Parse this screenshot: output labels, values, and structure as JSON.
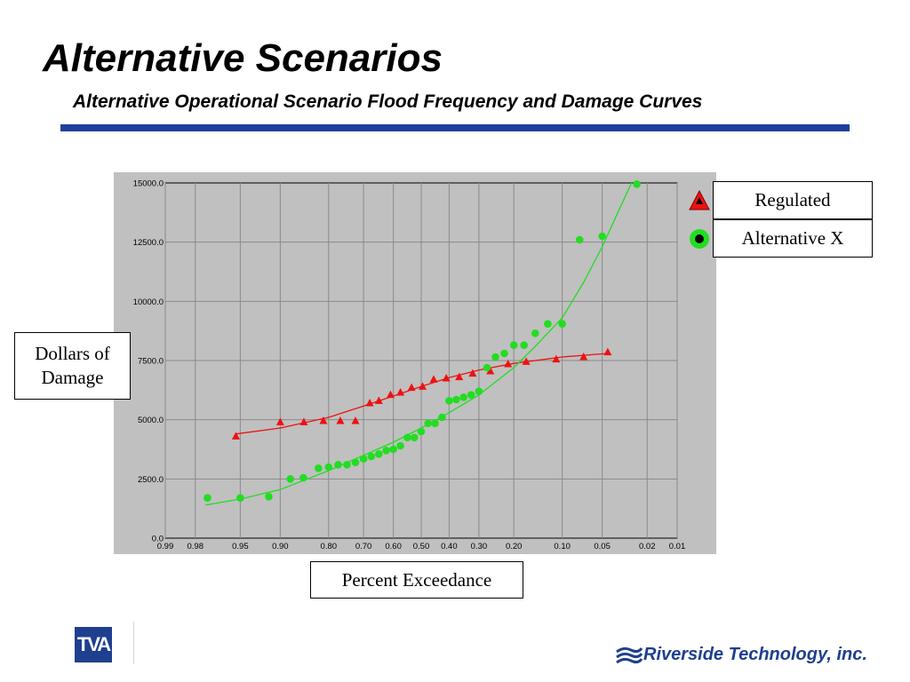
{
  "slide": {
    "title": "Alternative Scenarios",
    "subtitle": "Alternative Operational Scenario Flood Frequency and Damage Curves",
    "rule_color": "#1f3f9f"
  },
  "labels": {
    "ylabel": "Dollars of Damage",
    "xlabel": "Percent Exceedance"
  },
  "legend": {
    "items": [
      {
        "name": "Regulated",
        "symbol": "triangle-icon",
        "color": "#ee1111"
      },
      {
        "name": "Alternative X",
        "symbol": "circle-icon",
        "color": "#22dd22"
      }
    ]
  },
  "logos": {
    "left": "TVA",
    "right": "Riverside Technology, inc."
  },
  "chart_data": {
    "type": "scatter",
    "x_scale": "probability",
    "xlim": [
      0.99,
      0.01
    ],
    "ylim": [
      0,
      15000
    ],
    "grid": true,
    "plot_background": "#c0c0c0",
    "x_ticks": [
      {
        "value": 0.99,
        "label": "0.99"
      },
      {
        "value": 0.98,
        "label": "0.98"
      },
      {
        "value": 0.95,
        "label": "0.95"
      },
      {
        "value": 0.9,
        "label": "0.90"
      },
      {
        "value": 0.8,
        "label": "0.80"
      },
      {
        "value": 0.7,
        "label": "0.70"
      },
      {
        "value": 0.6,
        "label": "0.60"
      },
      {
        "value": 0.5,
        "label": "0.50"
      },
      {
        "value": 0.4,
        "label": "0.40"
      },
      {
        "value": 0.3,
        "label": "0.30"
      },
      {
        "value": 0.2,
        "label": "0.20"
      },
      {
        "value": 0.1,
        "label": "0.10"
      },
      {
        "value": 0.05,
        "label": "0.05"
      },
      {
        "value": 0.02,
        "label": "0.02"
      },
      {
        "value": 0.01,
        "label": "0.01"
      }
    ],
    "y_ticks": [
      {
        "value": 0,
        "label": "0.0"
      },
      {
        "value": 2500,
        "label": "2500.0"
      },
      {
        "value": 5000,
        "label": "5000.0"
      },
      {
        "value": 7500,
        "label": "7500.0"
      },
      {
        "value": 10000,
        "label": "10000.0"
      },
      {
        "value": 12500,
        "label": "12500.0"
      },
      {
        "value": 15000,
        "label": "15000.0"
      }
    ],
    "series": [
      {
        "name": "Regulated",
        "marker": "triangle",
        "color": "#ee1111",
        "points": [
          [
            0.954,
            4300
          ],
          [
            0.9,
            4900
          ],
          [
            0.857,
            4900
          ],
          [
            0.813,
            4950
          ],
          [
            0.769,
            4950
          ],
          [
            0.725,
            4950
          ],
          [
            0.68,
            5700
          ],
          [
            0.65,
            5800
          ],
          [
            0.61,
            6050
          ],
          [
            0.575,
            6150
          ],
          [
            0.535,
            6350
          ],
          [
            0.495,
            6400
          ],
          [
            0.455,
            6700
          ],
          [
            0.41,
            6750
          ],
          [
            0.365,
            6800
          ],
          [
            0.32,
            6950
          ],
          [
            0.265,
            7050
          ],
          [
            0.215,
            7350
          ],
          [
            0.17,
            7450
          ],
          [
            0.11,
            7550
          ],
          [
            0.07,
            7650
          ],
          [
            0.045,
            7850
          ]
        ],
        "curve": [
          [
            0.954,
            4400
          ],
          [
            0.9,
            4650
          ],
          [
            0.8,
            5100
          ],
          [
            0.7,
            5580
          ],
          [
            0.6,
            6000
          ],
          [
            0.5,
            6400
          ],
          [
            0.4,
            6780
          ],
          [
            0.3,
            7100
          ],
          [
            0.2,
            7380
          ],
          [
            0.1,
            7650
          ],
          [
            0.045,
            7800
          ]
        ]
      },
      {
        "name": "Alternative X",
        "marker": "circle",
        "color": "#22dd22",
        "points": [
          [
            0.974,
            1700
          ],
          [
            0.95,
            1700
          ],
          [
            0.917,
            1750
          ],
          [
            0.883,
            2500
          ],
          [
            0.858,
            2550
          ],
          [
            0.825,
            2950
          ],
          [
            0.8,
            3000
          ],
          [
            0.775,
            3100
          ],
          [
            0.75,
            3100
          ],
          [
            0.725,
            3200
          ],
          [
            0.7,
            3350
          ],
          [
            0.675,
            3450
          ],
          [
            0.65,
            3550
          ],
          [
            0.625,
            3700
          ],
          [
            0.6,
            3750
          ],
          [
            0.575,
            3900
          ],
          [
            0.55,
            4250
          ],
          [
            0.525,
            4250
          ],
          [
            0.5,
            4500
          ],
          [
            0.475,
            4850
          ],
          [
            0.45,
            4850
          ],
          [
            0.425,
            5100
          ],
          [
            0.4,
            5800
          ],
          [
            0.375,
            5850
          ],
          [
            0.35,
            5950
          ],
          [
            0.325,
            6050
          ],
          [
            0.3,
            6200
          ],
          [
            0.275,
            7200
          ],
          [
            0.25,
            7650
          ],
          [
            0.225,
            7800
          ],
          [
            0.2,
            8150
          ],
          [
            0.175,
            8150
          ],
          [
            0.15,
            8650
          ],
          [
            0.125,
            9050
          ],
          [
            0.1,
            9050
          ],
          [
            0.075,
            12600
          ],
          [
            0.05,
            12750
          ],
          [
            0.025,
            14950
          ]
        ],
        "curve": [
          [
            0.975,
            1400
          ],
          [
            0.95,
            1650
          ],
          [
            0.9,
            2050
          ],
          [
            0.8,
            2850
          ],
          [
            0.7,
            3500
          ],
          [
            0.6,
            4050
          ],
          [
            0.5,
            4650
          ],
          [
            0.4,
            5300
          ],
          [
            0.3,
            6050
          ],
          [
            0.2,
            7200
          ],
          [
            0.15,
            8100
          ],
          [
            0.1,
            9300
          ],
          [
            0.07,
            10800
          ],
          [
            0.05,
            12300
          ],
          [
            0.035,
            14000
          ],
          [
            0.028,
            15000
          ]
        ]
      }
    ]
  }
}
